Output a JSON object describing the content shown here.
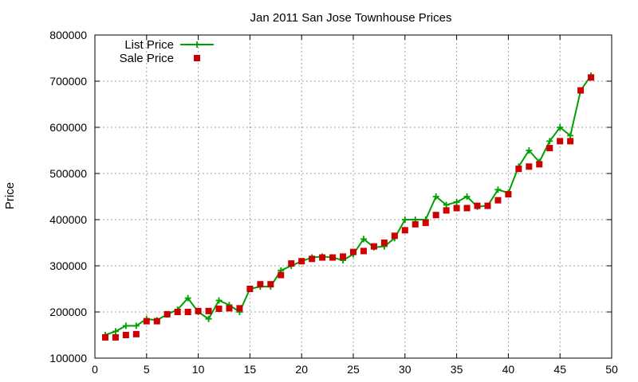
{
  "chart_data": {
    "type": "line",
    "title": "Jan 2011 San Jose Townhouse Prices",
    "xlabel": "",
    "ylabel": "Price",
    "xlim": [
      0,
      50
    ],
    "ylim": [
      100000,
      800000
    ],
    "x_ticks": [
      0,
      5,
      10,
      15,
      20,
      25,
      30,
      35,
      40,
      45,
      50
    ],
    "y_ticks": [
      100000,
      200000,
      300000,
      400000,
      500000,
      600000,
      700000,
      800000
    ],
    "grid": true,
    "legend_position": "top-left",
    "x": [
      1,
      2,
      3,
      4,
      5,
      6,
      7,
      8,
      9,
      10,
      11,
      12,
      13,
      14,
      15,
      16,
      17,
      18,
      19,
      20,
      21,
      22,
      23,
      24,
      25,
      26,
      27,
      28,
      29,
      30,
      31,
      32,
      33,
      34,
      35,
      36,
      37,
      38,
      39,
      40,
      41,
      42,
      43,
      44,
      45,
      46,
      47,
      48
    ],
    "series": [
      {
        "name": "List Price",
        "style": "line-plus",
        "color": "#00a000",
        "values": [
          150000,
          158000,
          170000,
          170000,
          185000,
          182000,
          195000,
          205000,
          230000,
          200000,
          185000,
          225000,
          215000,
          200000,
          250000,
          255000,
          255000,
          290000,
          300000,
          310000,
          318000,
          320000,
          318000,
          312000,
          325000,
          358000,
          340000,
          342000,
          360000,
          400000,
          400000,
          400000,
          450000,
          432000,
          438000,
          450000,
          428000,
          430000,
          465000,
          458000,
          515000,
          550000,
          525000,
          570000,
          600000,
          582000,
          680000,
          712000
        ]
      },
      {
        "name": "Sale Price",
        "style": "square",
        "color": "#cc0000",
        "values": [
          145000,
          145000,
          150000,
          152000,
          180000,
          180000,
          195000,
          200000,
          200000,
          202000,
          202000,
          207000,
          208000,
          208000,
          250000,
          260000,
          260000,
          280000,
          305000,
          310000,
          315000,
          318000,
          318000,
          320000,
          330000,
          332000,
          342000,
          350000,
          365000,
          377000,
          390000,
          393000,
          410000,
          420000,
          425000,
          425000,
          430000,
          430000,
          442000,
          455000,
          510000,
          515000,
          520000,
          555000,
          570000,
          570000,
          680000,
          708000
        ]
      }
    ]
  }
}
